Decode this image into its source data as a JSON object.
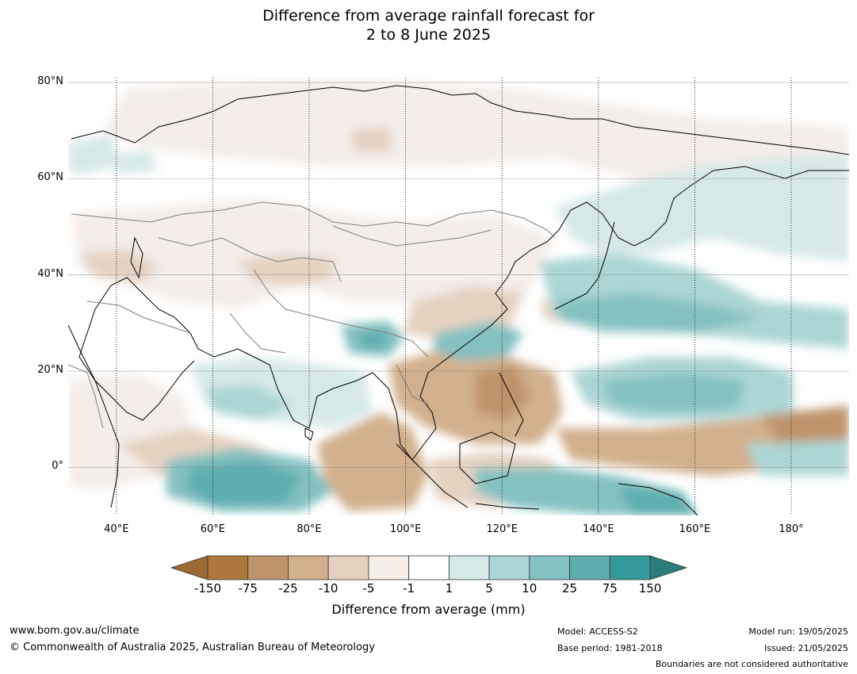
{
  "title": {
    "line1": "Difference from average rainfall forecast for",
    "line2": "2 to 8 June 2025"
  },
  "map": {
    "extent": {
      "lon_min": 30,
      "lon_max": 192,
      "lat_min": -10,
      "lat_max": 81
    },
    "lat_ticks": [
      {
        "value": 80,
        "label": "80°N"
      },
      {
        "value": 60,
        "label": "60°N"
      },
      {
        "value": 40,
        "label": "40°N"
      },
      {
        "value": 20,
        "label": "20°N"
      },
      {
        "value": 0,
        "label": "0°"
      }
    ],
    "lon_ticks": [
      {
        "value": 40,
        "label": "40°E"
      },
      {
        "value": 60,
        "label": "60°E"
      },
      {
        "value": 80,
        "label": "80°E"
      },
      {
        "value": 100,
        "label": "100°E"
      },
      {
        "value": 120,
        "label": "120°E"
      },
      {
        "value": 140,
        "label": "140°E"
      },
      {
        "value": 160,
        "label": "160°E"
      },
      {
        "value": 180,
        "label": "180°"
      }
    ],
    "coastline_color": "#000000",
    "boundary_color": "#808080"
  },
  "colorbar": {
    "label": "Difference from average (mm)",
    "ticks": [
      "-150",
      "-75",
      "-25",
      "-10",
      "-5",
      "-1",
      "1",
      "5",
      "10",
      "25",
      "75",
      "150"
    ],
    "low_extend_color": "#9c6a35",
    "high_extend_color": "#2a7e7a",
    "colors": [
      "#ae773d",
      "#c0946a",
      "#d2b08d",
      "#e5d1c0",
      "#f4ede8",
      "#ffffff",
      "#d6e9e9",
      "#acd5d5",
      "#84c1c1",
      "#5eaeae",
      "#359b9a"
    ]
  },
  "footer": {
    "website": "www.bom.gov.au/climate",
    "copyright": "© Commonwealth of Australia 2025, Australian Bureau of Meteorology",
    "model": "Model: ACCESS-S2",
    "base_period": "Base period: 1981-2018",
    "model_run": "Model run: 19/05/2025",
    "issued": "Issued: 21/05/2025",
    "disclaimer": "Boundaries are not considered authoritative"
  }
}
